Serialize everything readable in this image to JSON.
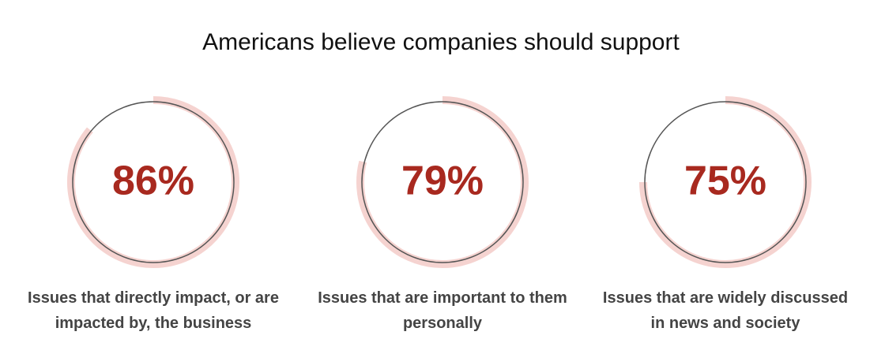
{
  "chart_data": {
    "type": "gauge",
    "title": "Americans believe companies should support",
    "categories": [
      "Issues that directly impact, or are impacted by, the business",
      "Issues that are important to them personally",
      "Issues that are widely discussed in news and society"
    ],
    "values": [
      86,
      79,
      75
    ],
    "value_labels": [
      "86%",
      "79%",
      "75%"
    ],
    "color": "#f5d3d0"
  }
}
